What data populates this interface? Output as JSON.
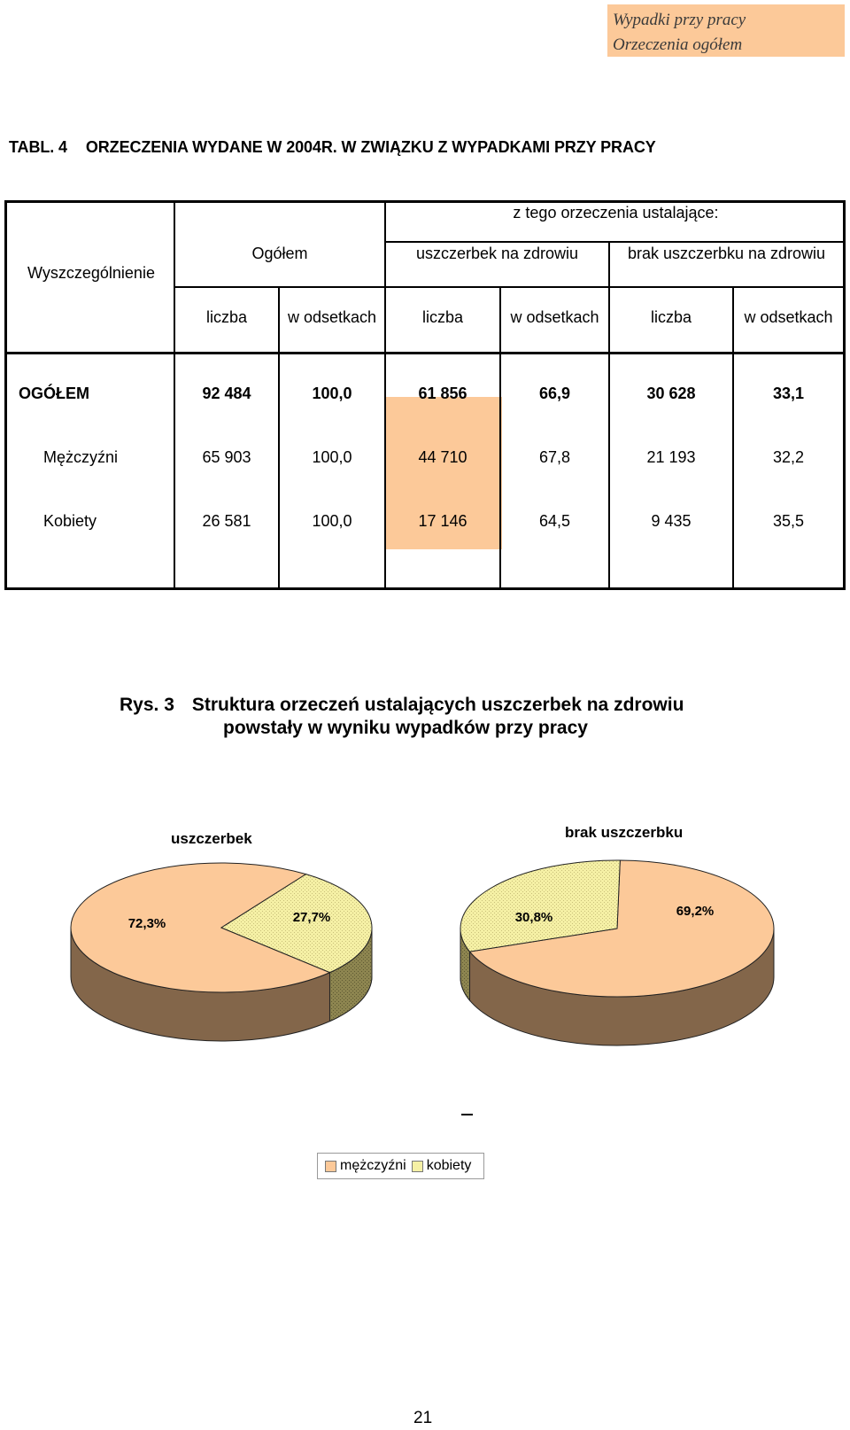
{
  "header": {
    "line1": "Wypadki przy pracy",
    "line2": "Orzeczenia ogółem",
    "bg_color": "#fcc999"
  },
  "table": {
    "number": "TABL. 4",
    "title": "ORZECZENIA WYDANE W 2004R.  W  ZWIĄZKU Z WYPADKAMI PRZY PRACY",
    "head": {
      "rowhead": "Wyszczególnienie",
      "total": "Ogółem",
      "group": "z tego orzeczenia ustalające:",
      "injury": "uszczerbek na zdrowiu",
      "no_injury": "brak uszczerbku na zdrowiu",
      "cols": [
        "liczba",
        "w odsetkach",
        "liczba",
        "w odsetkach",
        "liczba",
        "w odsetkach"
      ]
    },
    "rows": [
      {
        "label": "OGÓŁEM",
        "values": [
          "92 484",
          "100,0",
          "61 856",
          "66,9",
          "30 628",
          "33,1"
        ]
      },
      {
        "label": "Mężczyźni",
        "values": [
          "65 903",
          "100,0",
          "44 710",
          "67,8",
          "21 193",
          "32,2"
        ]
      },
      {
        "label": "Kobiety",
        "values": [
          "26 581",
          "100,0",
          "17 146",
          "64,5",
          "9 435",
          "35,5"
        ]
      }
    ],
    "highlight_color": "#fcc999"
  },
  "figure": {
    "label": "Rys. 3",
    "title_line1": "Struktura orzeczeń ustalających uszczerbek na zdrowiu",
    "title_line2": "powstały w wyniku wypadków przy pracy"
  },
  "chart_data": [
    {
      "type": "pie",
      "title": "uszczerbek",
      "labels": [
        "mężczyźni",
        "kobiety"
      ],
      "values": [
        72.3,
        27.7
      ],
      "value_labels": [
        "72,3%",
        "27,7%"
      ],
      "colors": [
        "#fcc999",
        "#f5f0a5"
      ]
    },
    {
      "type": "pie",
      "title": "brak uszczerbku",
      "labels": [
        "mężczyźni",
        "kobiety"
      ],
      "values": [
        69.2,
        30.8
      ],
      "value_labels": [
        "69,2%",
        "30,8%"
      ],
      "colors": [
        "#fcc999",
        "#f5f0a5"
      ]
    }
  ],
  "legend": {
    "placement": "bottom-center",
    "items": [
      {
        "label": "mężczyźni",
        "color": "#fcc999"
      },
      {
        "label": "kobiety",
        "color": "#f5f0a5"
      }
    ]
  },
  "page_number": "21"
}
